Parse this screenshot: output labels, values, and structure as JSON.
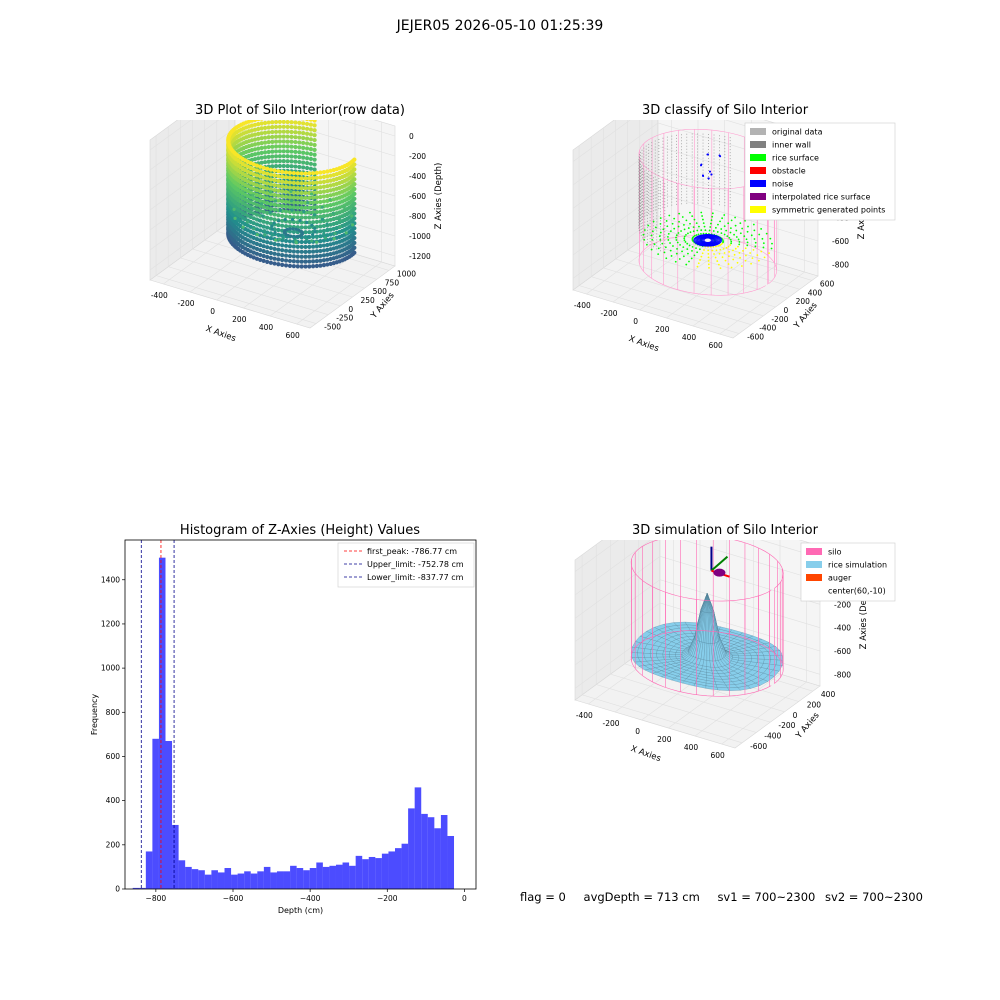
{
  "suptitle": "JEJER05 2026-05-10 01:25:39",
  "panels": {
    "raw": {
      "title": "3D Plot of Silo Interior(row data)",
      "xlabel": "X Axies",
      "ylabel": "Y Axies",
      "zlabel": "Z Axies (Depth)",
      "xticks": [
        "-400",
        "-200",
        "0",
        "200",
        "400",
        "600"
      ],
      "yticks": [
        "1000",
        "750",
        "500",
        "250",
        "0",
        "-250",
        "-500"
      ],
      "zticks": [
        "0",
        "-200",
        "-400",
        "-600",
        "-800",
        "-1000",
        "-1200"
      ]
    },
    "classify": {
      "title": "3D classify of Silo Interior",
      "xlabel": "X Axies",
      "ylabel": "Y Axies",
      "zlabel": "Z Axies (Depth)",
      "xticks": [
        "-400",
        "-200",
        "0",
        "200",
        "400",
        "600"
      ],
      "yticks": [
        "600",
        "400",
        "200",
        "0",
        "-200",
        "-400",
        "-600"
      ],
      "zticks": [
        "200",
        "0",
        "-200",
        "-400",
        "-600",
        "-800"
      ],
      "legend": [
        {
          "label": "original data",
          "color": "#b3b3b3"
        },
        {
          "label": "inner wall",
          "color": "#808080"
        },
        {
          "label": "rice surface",
          "color": "#00ff00"
        },
        {
          "label": "obstacle",
          "color": "#ff0000"
        },
        {
          "label": "noise",
          "color": "#0000ff"
        },
        {
          "label": "interpolated rice surface",
          "color": "#800080"
        },
        {
          "label": "symmetric generated points",
          "color": "#ffff00"
        }
      ]
    },
    "simulation": {
      "title": "3D simulation of Silo Interior",
      "xlabel": "X Axies",
      "ylabel": "Y Axies",
      "zlabel": "Z Axies (Depth)",
      "xticks": [
        "-400",
        "-200",
        "0",
        "200",
        "400",
        "600"
      ],
      "yticks": [
        "400",
        "200",
        "0",
        "-200",
        "-400",
        "-600"
      ],
      "zticks": [
        "200",
        "0",
        "-200",
        "-400",
        "-600",
        "-800"
      ],
      "legend": [
        {
          "label": "silo",
          "color": "#ff69b4"
        },
        {
          "label": "rice simulation",
          "color": "#87ceeb"
        },
        {
          "label": "auger",
          "color": "#ff4500"
        },
        {
          "label": "center(60,-10)",
          "color": "none"
        }
      ]
    }
  },
  "chart_data": {
    "type": "bar",
    "title": "Histogram of Z-Axies (Height) Values",
    "xlabel": "Depth (cm)",
    "ylabel": "Frequency",
    "xlim": [
      -880,
      30
    ],
    "ylim": [
      0,
      1580
    ],
    "xticks": [
      -800,
      -600,
      -400,
      -200,
      0
    ],
    "yticks": [
      0,
      200,
      400,
      600,
      800,
      1000,
      1200,
      1400
    ],
    "bin_width": 17,
    "bin_start": -860,
    "values": [
      5,
      5,
      170,
      680,
      1500,
      670,
      290,
      130,
      100,
      90,
      85,
      65,
      85,
      75,
      95,
      65,
      70,
      80,
      70,
      80,
      100,
      75,
      80,
      80,
      105,
      95,
      85,
      95,
      120,
      100,
      105,
      110,
      120,
      105,
      150,
      135,
      145,
      140,
      160,
      170,
      185,
      205,
      365,
      460,
      340,
      325,
      275,
      335,
      240
    ],
    "color": "#0000ff",
    "lines": [
      {
        "label": "first_peak: -786.77 cm",
        "x": -786.77,
        "color": "#ff0000"
      },
      {
        "label": "Upper_limit: -752.78 cm",
        "x": -752.78,
        "color": "#00008b"
      },
      {
        "label": "Lower_limit: -837.77 cm",
        "x": -837.77,
        "color": "#00008b"
      }
    ]
  },
  "footer": {
    "flag": "flag = 0",
    "avg": "avgDepth = 713 cm",
    "sv1": "sv1 = 700~2300",
    "sv2": "sv2 = 700~2300"
  }
}
